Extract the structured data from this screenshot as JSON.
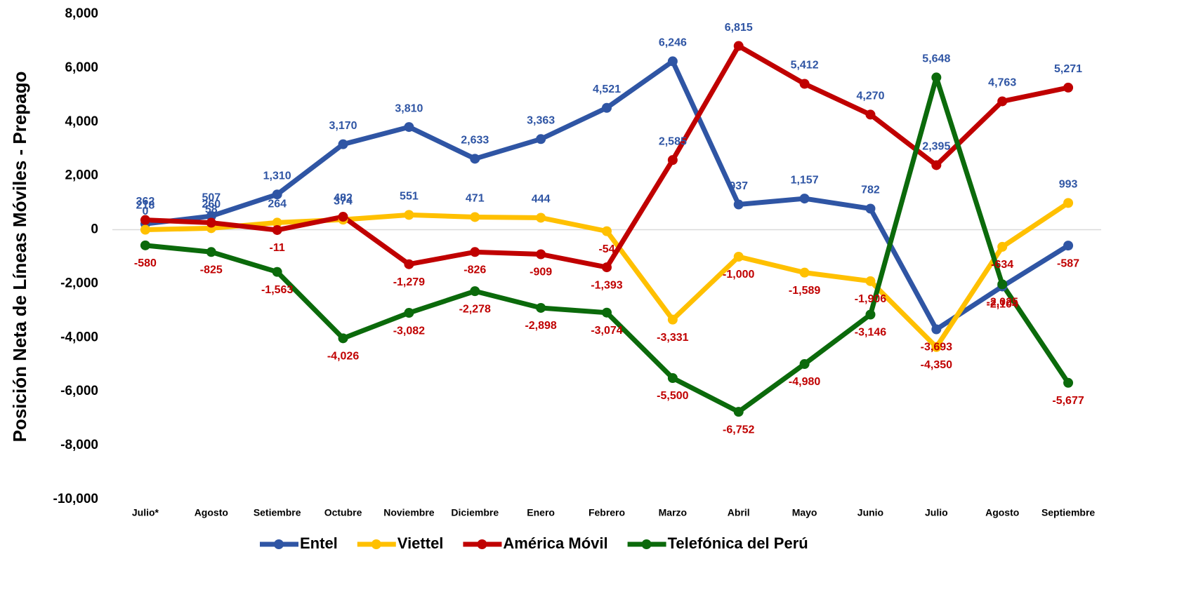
{
  "chart_data": {
    "type": "line",
    "y_label": "Posición Neta de Líneas Móviles - Prepago",
    "categories": [
      "Julio*",
      "Agosto",
      "Setiembre",
      "Octubre",
      "Noviembre",
      "Diciembre",
      "Enero",
      "Febrero",
      "Marzo",
      "Abril",
      "Mayo",
      "Junio",
      "Julio",
      "Agosto",
      "Septiembre"
    ],
    "series": [
      {
        "name": "Entel",
        "color": "#2f55a4",
        "values": [
          218,
          507,
          1310,
          3170,
          3810,
          2633,
          3363,
          4521,
          6246,
          937,
          1157,
          782,
          -3693,
          -2104,
          -587
        ],
        "value_labels": [
          "218",
          "507",
          "1,310",
          "3,170",
          "3,810",
          "2,633",
          "3,363",
          "4,521",
          "6,246",
          "937",
          "1,157",
          "782",
          "-3,693",
          "-2,104",
          "-587"
        ]
      },
      {
        "name": "Viettel",
        "color": "#ffc000",
        "values": [
          0,
          58,
          264,
          374,
          551,
          471,
          444,
          -54,
          -3331,
          -1000,
          -1589,
          -1906,
          -4350,
          -634,
          993
        ],
        "value_labels": [
          "0",
          "58",
          "264",
          "374",
          "551",
          "471",
          "444",
          "-54",
          "-3,331",
          "-1,000",
          "-1,589",
          "-1,906",
          "-4,350",
          "-634",
          "993"
        ]
      },
      {
        "name": "América Móvil",
        "color": "#c00000",
        "values": [
          362,
          260,
          -11,
          482,
          -1279,
          -826,
          -909,
          -1393,
          2585,
          6815,
          5412,
          4270,
          2395,
          4763,
          5271
        ],
        "value_labels": [
          "362",
          "260",
          "-11",
          "482",
          "-1,279",
          "-826",
          "-909",
          "-1,393",
          "2,585",
          "6,815",
          "5,412",
          "4,270",
          "2,395",
          "4,763",
          "5,271"
        ]
      },
      {
        "name": "Telefónica del Perú",
        "color": "#0b6a0b",
        "values": [
          -580,
          -825,
          -1563,
          -4026,
          -3082,
          -2278,
          -2898,
          -3074,
          -5500,
          -6752,
          -4980,
          -3146,
          5648,
          -2025,
          -5677
        ],
        "value_labels": [
          "-580",
          "-825",
          "-1,563",
          "-4,026",
          "-3,082",
          "-2,278",
          "-2,898",
          "-3,074",
          "-5,500",
          "-6,752",
          "-4,980",
          "-3,146",
          "5,648",
          "-2,025",
          "-5,677"
        ]
      }
    ],
    "ylim": [
      -10000,
      8000
    ],
    "yticks": [
      {
        "value": -10000,
        "label": "-10,000"
      },
      {
        "value": -8000,
        "label": "-8,000"
      },
      {
        "value": -6000,
        "label": "-6,000"
      },
      {
        "value": -4000,
        "label": "-4,000"
      },
      {
        "value": -2000,
        "label": "-2,000"
      },
      0,
      {
        "value": 2000,
        "label": "2,000"
      },
      {
        "value": 4000,
        "label": "4,000"
      },
      {
        "value": 6000,
        "label": "6,000"
      },
      {
        "value": 8000,
        "label": "8,000"
      }
    ],
    "legend": "bottom"
  }
}
